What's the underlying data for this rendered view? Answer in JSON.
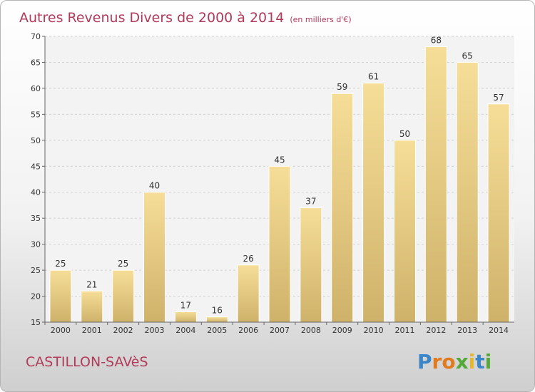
{
  "chart_data": {
    "type": "bar",
    "title": "Autres Revenus Divers de 2000 à 2014",
    "subtitle": "(en milliers d'€)",
    "categories": [
      "2000",
      "2001",
      "2002",
      "2003",
      "2004",
      "2005",
      "2006",
      "2007",
      "2008",
      "2009",
      "2010",
      "2011",
      "2012",
      "2013",
      "2014"
    ],
    "values": [
      25,
      21,
      25,
      40,
      17,
      16,
      26,
      45,
      37,
      59,
      61,
      50,
      68,
      65,
      57
    ],
    "ylim": [
      15,
      70
    ],
    "yticks": [
      15,
      20,
      25,
      30,
      35,
      40,
      45,
      50,
      55,
      60,
      65,
      70
    ],
    "grid": "horizontal dashed",
    "bar_color": "#e9cd84"
  },
  "footer": {
    "place": "CASTILLON-SAVèS",
    "logo": "Proxiti"
  }
}
